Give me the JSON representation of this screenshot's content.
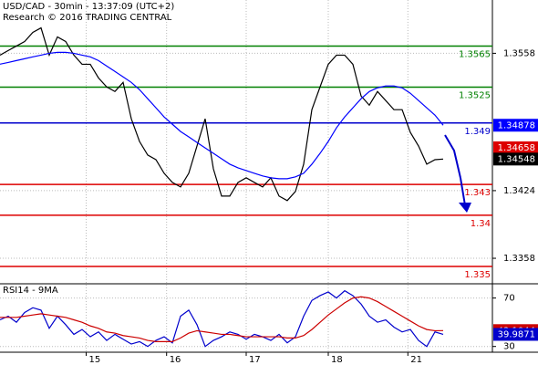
{
  "chart_data": [
    {
      "type": "line",
      "title": "USD/CAD - 30min - 13:37:09 (UTC+2)",
      "subtitle": "Research © 2016 TRADING CENTRAL",
      "x": [
        0,
        1,
        2,
        3,
        4,
        5,
        6,
        7,
        8,
        9,
        10,
        11,
        12,
        13,
        14,
        15,
        16,
        17,
        18,
        19,
        20,
        21,
        22,
        23,
        24,
        25,
        26,
        27,
        28,
        29,
        30,
        31,
        32,
        33,
        34,
        35,
        36,
        37,
        38,
        39,
        40,
        41,
        42,
        43,
        44,
        45,
        46,
        47,
        48,
        49,
        50,
        51,
        52,
        53,
        54
      ],
      "xlim": [
        0,
        60
      ],
      "xticks": [
        {
          "value": 10.5,
          "label": "15"
        },
        {
          "value": 20.3,
          "label": "16"
        },
        {
          "value": 30,
          "label": "17"
        },
        {
          "value": 40,
          "label": "18"
        },
        {
          "value": 49.7,
          "label": "21"
        }
      ],
      "ylim": [
        1.3334,
        1.361
      ],
      "yticks": [
        1.3558,
        1.3424,
        1.3358
      ],
      "grid": true,
      "series": [
        {
          "color": "#000000",
          "values": [
            1.35562,
            1.35607,
            1.35651,
            1.35695,
            1.35784,
            1.35828,
            1.35562,
            1.3574,
            1.35695,
            1.35562,
            1.35473,
            1.35473,
            1.3534,
            1.35252,
            1.35207,
            1.35296,
            1.34941,
            1.3472,
            1.34587,
            1.34542,
            1.34409,
            1.3432,
            1.34276,
            1.34409,
            1.34675,
            1.34941,
            1.34453,
            1.34187,
            1.34187,
            1.3432,
            1.34365,
            1.3432,
            1.34276,
            1.34365,
            1.34187,
            1.34143,
            1.34232,
            1.34498,
            1.3503,
            1.35252,
            1.35473,
            1.35562,
            1.35562,
            1.35473,
            1.35163,
            1.35074,
            1.35207,
            1.35119,
            1.3503,
            1.3503,
            1.34808,
            1.34675,
            1.34498,
            1.34542,
            1.34548
          ]
        },
        {
          "color": "#0000ff",
          "values": [
            1.35474,
            1.35491,
            1.35509,
            1.35527,
            1.35545,
            1.35562,
            1.3558,
            1.35589,
            1.35589,
            1.3558,
            1.35562,
            1.35545,
            1.35509,
            1.35456,
            1.35403,
            1.3535,
            1.35296,
            1.35225,
            1.35137,
            1.35048,
            1.34959,
            1.34888,
            1.34817,
            1.34764,
            1.3471,
            1.34657,
            1.34604,
            1.34551,
            1.34498,
            1.34462,
            1.34436,
            1.34409,
            1.34383,
            1.34365,
            1.34356,
            1.34356,
            1.34374,
            1.34409,
            1.34498,
            1.34604,
            1.3472,
            1.34853,
            1.34959,
            1.35048,
            1.35137,
            1.35207,
            1.35243,
            1.35261,
            1.35261,
            1.35243,
            1.3519,
            1.35119,
            1.35048,
            1.34977,
            1.34878
          ]
        }
      ],
      "levels": [
        {
          "value": 1.3565,
          "color": "#008000"
        },
        {
          "value": 1.3525,
          "color": "#008000"
        },
        {
          "value": 1.349,
          "color": "#0000cc"
        },
        {
          "value": 1.343,
          "color": "#dd0000"
        },
        {
          "value": 1.34,
          "color": "#dd0000"
        },
        {
          "value": 1.335,
          "color": "#dd0000"
        }
      ],
      "price_labels": [
        {
          "value": 1.34658,
          "color": "#dd0000"
        }
      ]
    },
    {
      "type": "line",
      "title": "RSI14 - 9MA",
      "ylim": [
        26,
        81
      ],
      "yticks": [
        70,
        30
      ],
      "series": [
        {
          "color": "#0000cc",
          "values": [
            52,
            55,
            50,
            58,
            62,
            60,
            45,
            55,
            48,
            40,
            44,
            38,
            42,
            35,
            40,
            36,
            32,
            34,
            30,
            35,
            38,
            33,
            55,
            60,
            48,
            30,
            35,
            38,
            42,
            40,
            36,
            40,
            38,
            35,
            40,
            33,
            38,
            55,
            68,
            72,
            75,
            70,
            76,
            72,
            65,
            55,
            50,
            52,
            46,
            42,
            44,
            35,
            30,
            42,
            39.9871
          ]
        },
        {
          "color": "#cc0000",
          "values": [
            54,
            54,
            54,
            55,
            56,
            57,
            56,
            55,
            54,
            52,
            50,
            47,
            45,
            42,
            41,
            39,
            38,
            37,
            35,
            34,
            34,
            34,
            37,
            41,
            43,
            42,
            41,
            40,
            40,
            39,
            38,
            38,
            38,
            38,
            38,
            37,
            37,
            39,
            44,
            50,
            56,
            61,
            66,
            70,
            71,
            70,
            67,
            63,
            59,
            55,
            51,
            47,
            44,
            43,
            43.1044
          ]
        }
      ]
    }
  ]
}
